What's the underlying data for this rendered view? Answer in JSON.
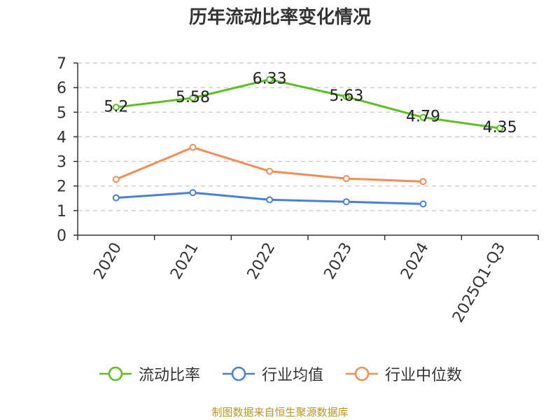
{
  "chart_data": {
    "type": "line",
    "title": "历年流动比率变化情况",
    "categories": [
      "2020",
      "2021",
      "2022",
      "2023",
      "2024",
      "2025Q1-Q3"
    ],
    "ylim": [
      0,
      7
    ],
    "yticks": [
      "0",
      "1",
      "2",
      "3",
      "4",
      "5",
      "6",
      "7"
    ],
    "grid": true,
    "legend_position": "bottom",
    "series": [
      {
        "name": "流动比率",
        "color": "#5cbf1f",
        "values": [
          5.2,
          5.58,
          6.33,
          5.63,
          4.79,
          4.35
        ],
        "labels": [
          "5.2",
          "5.58",
          "6.33",
          "5.63",
          "4.79",
          "4.35"
        ]
      },
      {
        "name": "行业均值",
        "color": "#4a7fd8",
        "values": [
          1.52,
          1.73,
          1.44,
          1.36,
          1.27,
          null
        ]
      },
      {
        "name": "行业中位数",
        "color": "#f58b55",
        "values": [
          2.27,
          3.57,
          2.6,
          2.3,
          2.18,
          null
        ]
      }
    ]
  },
  "footer": {
    "source": "制图数据来自恒生聚源数据库"
  }
}
